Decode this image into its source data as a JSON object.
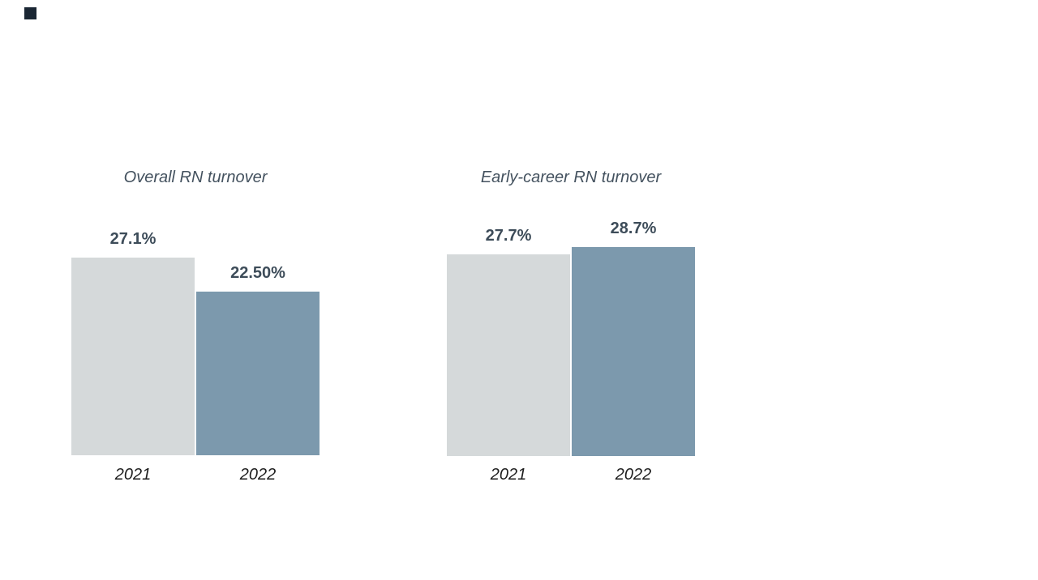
{
  "slide": {
    "background": "#ffffff",
    "accent_square_color": "#1a2633"
  },
  "colors": {
    "bar_2021": "#d5d9da",
    "bar_2022": "#7c99ad",
    "value_label": "#3d4c59",
    "title": "#44525f",
    "year_label": "#1e1e1e"
  },
  "chart_data": [
    {
      "type": "bar",
      "title": "Overall RN turnover",
      "categories": [
        "2021",
        "2022"
      ],
      "values": [
        27.1,
        22.5
      ],
      "data_labels": [
        "27.1%",
        "22.50%"
      ],
      "series_colors": [
        "#d5d9da",
        "#7c99ad"
      ],
      "ylim": [
        0,
        30
      ],
      "grid": false,
      "axes_visible": false,
      "legend": "none"
    },
    {
      "type": "bar",
      "title": "Early-career RN turnover",
      "categories": [
        "2021",
        "2022"
      ],
      "values": [
        27.7,
        28.7
      ],
      "data_labels": [
        "27.7%",
        "28.7%"
      ],
      "series_colors": [
        "#d5d9da",
        "#7c99ad"
      ],
      "ylim": [
        0,
        30
      ],
      "grid": false,
      "axes_visible": false,
      "legend": "none"
    }
  ]
}
